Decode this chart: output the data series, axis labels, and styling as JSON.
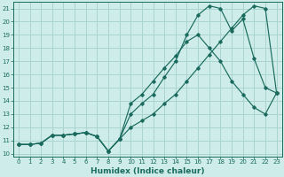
{
  "title": "",
  "xlabel": "Humidex (Indice chaleur)",
  "ylabel": "",
  "background_color": "#ceecea",
  "grid_color": "#aad4d0",
  "line_color": "#1a6b5e",
  "xlim": [
    -0.5,
    23.5
  ],
  "ylim": [
    9.8,
    21.5
  ],
  "xticks": [
    0,
    1,
    2,
    3,
    4,
    5,
    6,
    7,
    8,
    9,
    10,
    11,
    12,
    13,
    14,
    15,
    16,
    17,
    18,
    19,
    20,
    21,
    22,
    23
  ],
  "yticks": [
    10,
    11,
    12,
    13,
    14,
    15,
    16,
    17,
    18,
    19,
    20,
    21
  ],
  "line1_x": [
    0,
    1,
    2,
    3,
    4,
    5,
    6,
    7,
    8,
    9,
    10,
    11,
    12,
    13,
    14,
    15,
    16,
    17,
    18,
    19,
    20,
    21,
    22,
    23
  ],
  "line1_y": [
    10.7,
    10.7,
    10.8,
    11.4,
    11.4,
    11.5,
    11.6,
    11.3,
    10.2,
    11.1,
    13.8,
    14.5,
    15.5,
    16.5,
    17.4,
    18.5,
    19.0,
    18.0,
    17.0,
    15.5,
    14.5,
    13.5,
    13.0,
    14.6
  ],
  "line2_x": [
    0,
    1,
    2,
    3,
    4,
    5,
    6,
    7,
    8,
    9,
    10,
    11,
    12,
    13,
    14,
    15,
    16,
    17,
    18,
    19,
    20,
    21,
    22,
    23
  ],
  "line2_y": [
    10.7,
    10.7,
    10.8,
    11.4,
    11.4,
    11.5,
    11.6,
    11.3,
    10.2,
    11.1,
    13.0,
    13.8,
    14.5,
    15.8,
    17.0,
    19.0,
    20.5,
    21.2,
    21.0,
    19.3,
    20.2,
    17.2,
    15.0,
    14.6
  ],
  "line3_x": [
    0,
    1,
    2,
    3,
    4,
    5,
    6,
    7,
    8,
    9,
    10,
    11,
    12,
    13,
    14,
    15,
    16,
    17,
    18,
    19,
    20,
    21,
    22,
    23
  ],
  "line3_y": [
    10.7,
    10.7,
    10.8,
    11.4,
    11.4,
    11.5,
    11.6,
    11.3,
    10.2,
    11.1,
    12.0,
    12.5,
    13.0,
    13.8,
    14.5,
    15.5,
    16.5,
    17.5,
    18.5,
    19.5,
    20.5,
    21.2,
    21.0,
    14.6
  ],
  "tick_fontsize": 5.0,
  "xlabel_fontsize": 6.5
}
